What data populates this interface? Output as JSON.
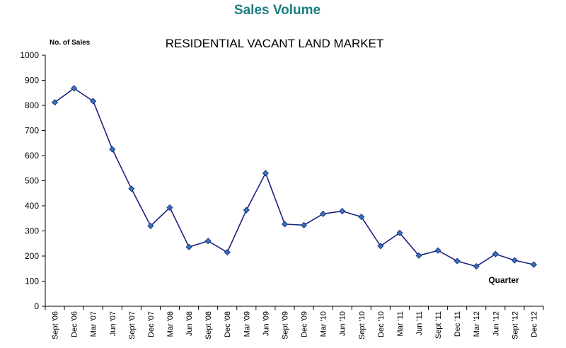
{
  "header": {
    "title": "Sales Volume",
    "title_color": "#1a7f80"
  },
  "chart_data": {
    "type": "line",
    "title": "RESIDENTIAL VACANT LAND MARKET",
    "ylabel": "No. of Sales",
    "xlabel": "Quarter",
    "ylim": [
      0,
      1000
    ],
    "yticks": [
      "0",
      "100",
      "200",
      "300",
      "400",
      "500",
      "600",
      "700",
      "800",
      "900",
      "1000"
    ],
    "grid": false,
    "line_color": "#1a237e",
    "marker_color": "#2e75b6",
    "categories": [
      "Sept '06",
      "Dec '06",
      "Mar '07",
      "Jun '07",
      "Sept '07",
      "Dec '07",
      "Mar '08",
      "Jun '08",
      "Sept '08",
      "Dec '08",
      "Mar '09",
      "Jun '09",
      "Sept '09",
      "Dec '09",
      "Mar '10",
      "Jun '10",
      "Sept '10",
      "Dec '10",
      "Mar '11",
      "Jun '11",
      "Sept '11",
      "Dec '11",
      "Mar '12",
      "Jun '12",
      "Sept '12",
      "Dec '12"
    ],
    "series": [
      {
        "values": [
          812,
          868,
          817,
          625,
          468,
          320,
          393,
          236,
          260,
          215,
          383,
          530,
          327,
          323,
          368,
          379,
          356,
          240,
          292,
          202,
          222,
          180,
          159,
          208,
          183,
          166
        ]
      }
    ]
  }
}
